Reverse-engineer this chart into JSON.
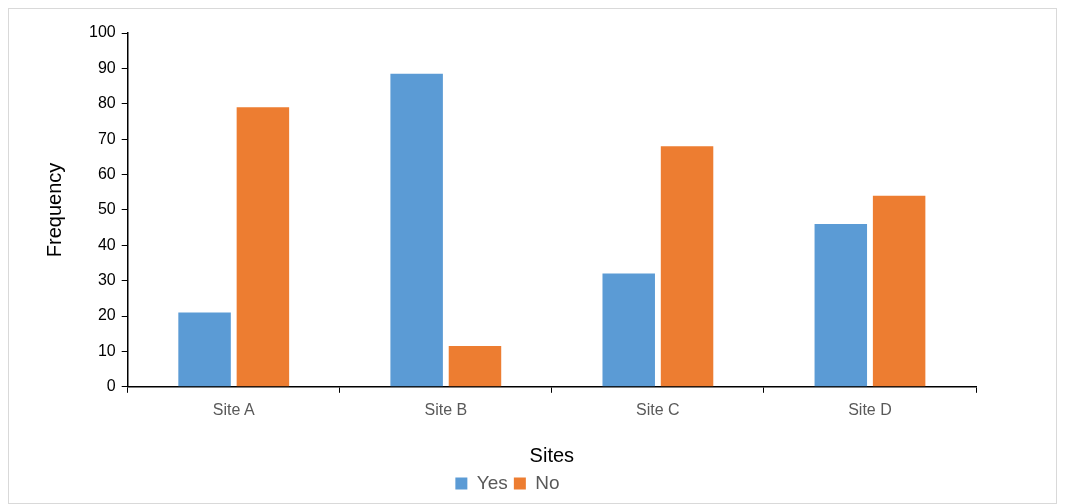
{
  "chart_data": {
    "type": "bar",
    "xlabel": "Sites",
    "ylabel": "Frequency",
    "categories": [
      "Site A",
      "Site B",
      "Site C",
      "Site D"
    ],
    "series": [
      {
        "name": "Yes",
        "color": "#5b9bd5",
        "values": [
          21,
          88.5,
          32,
          46
        ]
      },
      {
        "name": "No",
        "color": "#ed7d31",
        "values": [
          79,
          11.5,
          68,
          54
        ]
      }
    ],
    "ylim": [
      0,
      100
    ],
    "yticks": [
      0,
      10,
      20,
      30,
      40,
      50,
      60,
      70,
      80,
      90,
      100
    ],
    "grid": false,
    "legend": "bottom"
  }
}
